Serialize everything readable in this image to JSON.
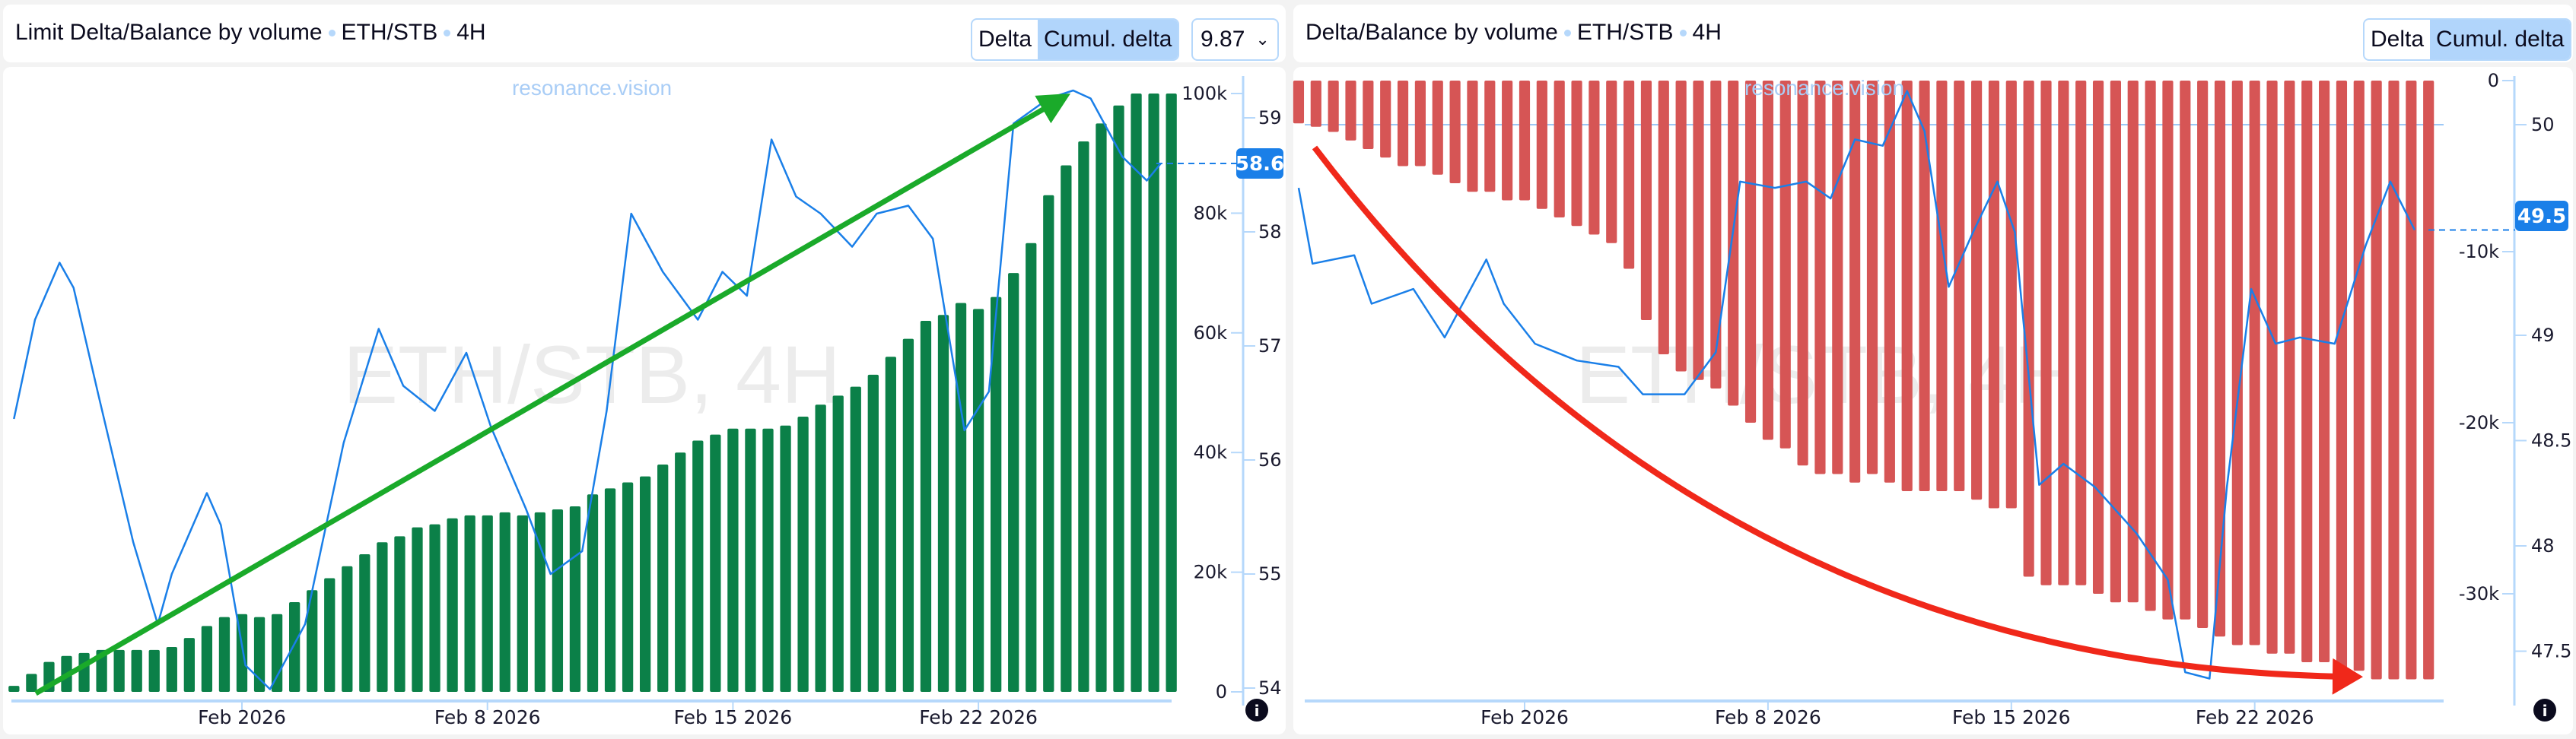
{
  "left": {
    "title": "Limit Delta/Balance by volume",
    "pair": "ETH/STB",
    "timeframe": "4H",
    "toggle": {
      "delta": "Delta",
      "cumul": "Cumul. delta",
      "active": "cumul"
    },
    "dropdown_value": "9.87",
    "watermark": "ETH/STB, 4H",
    "brand": "resonance.vision",
    "price_badge": "58.6",
    "info_icon": "i"
  },
  "right": {
    "title": "Delta/Balance by volume",
    "pair": "ETH/STB",
    "timeframe": "4H",
    "toggle": {
      "delta": "Delta",
      "cumul": "Cumul. delta",
      "active": "cumul"
    },
    "watermark": "ETH/STB, 4H",
    "brand": "resonance.vision",
    "price_badge": "49.5",
    "info_icon": "i"
  },
  "chart_data": [
    {
      "type": "bar+line",
      "title": "Limit Delta/Balance by volume • ETH/STB • 4H",
      "x_unit": "days relative to Feb 1 2026",
      "x_ticks": [
        {
          "day": 0,
          "label": "Feb 2026"
        },
        {
          "day": 7,
          "label": "Feb 8 2026"
        },
        {
          "day": 14,
          "label": "Feb 15 2026"
        },
        {
          "day": 21,
          "label": "Feb 22 2026"
        }
      ],
      "bars": {
        "name": "Cumulative limit delta",
        "color": "#0b8048",
        "start_day": -6.5,
        "step_days": 0.5,
        "values": [
          1000,
          3000,
          5000,
          6000,
          6500,
          7000,
          7000,
          7000,
          7000,
          7500,
          9000,
          11000,
          12500,
          13000,
          12500,
          13000,
          15000,
          17000,
          19000,
          21000,
          23000,
          25000,
          26000,
          27500,
          28000,
          29000,
          29500,
          29500,
          30000,
          29500,
          30000,
          30500,
          31000,
          33000,
          34000,
          35000,
          36000,
          38000,
          40000,
          42000,
          43000,
          44000,
          44000,
          44000,
          44500,
          46000,
          48000,
          49500,
          51000,
          53000,
          56000,
          59000,
          62000,
          63000,
          65000,
          64000,
          66000,
          70000,
          75000,
          83000,
          88000,
          92000,
          95000,
          98000,
          100000,
          100000,
          100000
        ]
      },
      "line": {
        "name": "Price",
        "color": "#1a7fe8",
        "points": [
          [
            -6.5,
            56.36
          ],
          [
            -5.9,
            57.23
          ],
          [
            -5.2,
            57.73
          ],
          [
            -4.8,
            57.51
          ],
          [
            -4.1,
            56.58
          ],
          [
            -3.1,
            55.28
          ],
          [
            -2.4,
            54.56
          ],
          [
            -2.0,
            55.0
          ],
          [
            -1.0,
            55.71
          ],
          [
            -0.6,
            55.43
          ],
          [
            0.1,
            54.2
          ],
          [
            0.8,
            53.99
          ],
          [
            1.8,
            54.56
          ],
          [
            2.9,
            56.15
          ],
          [
            3.9,
            57.15
          ],
          [
            4.6,
            56.65
          ],
          [
            5.5,
            56.43
          ],
          [
            6.4,
            56.94
          ],
          [
            7.1,
            56.29
          ],
          [
            8.1,
            55.57
          ],
          [
            8.8,
            55.0
          ],
          [
            9.7,
            55.2
          ],
          [
            10.4,
            56.43
          ],
          [
            11.1,
            58.16
          ],
          [
            12.0,
            57.65
          ],
          [
            13.0,
            57.23
          ],
          [
            13.7,
            57.65
          ],
          [
            14.4,
            57.44
          ],
          [
            15.1,
            58.81
          ],
          [
            15.8,
            58.31
          ],
          [
            16.5,
            58.16
          ],
          [
            17.4,
            57.87
          ],
          [
            18.1,
            58.16
          ],
          [
            19.0,
            58.23
          ],
          [
            19.7,
            57.94
          ],
          [
            20.6,
            56.26
          ],
          [
            21.3,
            56.6
          ],
          [
            22.0,
            58.95
          ],
          [
            23.0,
            59.17
          ],
          [
            23.7,
            59.24
          ],
          [
            24.2,
            59.17
          ],
          [
            25.1,
            58.66
          ],
          [
            25.8,
            58.45
          ],
          [
            26.2,
            58.6
          ]
        ]
      },
      "y_left": {
        "ticks": [
          0,
          20000,
          40000,
          60000,
          80000,
          100000
        ],
        "labels": [
          "0",
          "20k",
          "40k",
          "60k",
          "80k",
          "100k"
        ]
      },
      "y_right": {
        "ticks": [
          54,
          55,
          56,
          57,
          58,
          59
        ],
        "labels": [
          "54",
          "55",
          "56",
          "57",
          "58",
          "59"
        ]
      },
      "last_price": 58.6,
      "annotation": {
        "type": "arrow",
        "color": "#1aaa2a",
        "direction": "up-trend"
      }
    },
    {
      "type": "bar+line",
      "title": "Delta/Balance by volume • ETH/STB • 4H",
      "x_unit": "days relative to Feb 1 2026",
      "x_ticks": [
        {
          "day": 0,
          "label": "Feb 2026"
        },
        {
          "day": 7,
          "label": "Feb 8 2026"
        },
        {
          "day": 14,
          "label": "Feb 15 2026"
        },
        {
          "day": 21,
          "label": "Feb 22 2026"
        }
      ],
      "bars": {
        "name": "Cumulative delta",
        "color": "#d65555",
        "start_day": -6.5,
        "step_days": 0.5,
        "values": [
          -2500,
          -2700,
          -3000,
          -3500,
          -4000,
          -4500,
          -5000,
          -5000,
          -5500,
          -6000,
          -6500,
          -6500,
          -7000,
          -7000,
          -7500,
          -8000,
          -8500,
          -9000,
          -9500,
          -11000,
          -14000,
          -16000,
          -17000,
          -17500,
          -18000,
          -19000,
          -20000,
          -21000,
          -21500,
          -22500,
          -23000,
          -23000,
          -23500,
          -23000,
          -23500,
          -24000,
          -24000,
          -24000,
          -24000,
          -24500,
          -25000,
          -25000,
          -29000,
          -29500,
          -29500,
          -29500,
          -30000,
          -30500,
          -30500,
          -31000,
          -31500,
          -31500,
          -32000,
          -32500,
          -33000,
          -33000,
          -33500,
          -33500,
          -34000,
          -34000,
          -34500,
          -34500,
          -35000,
          -35000,
          -35000,
          -35000
        ]
      },
      "line": {
        "name": "Price",
        "color": "#1a7fe8",
        "points": [
          [
            -6.5,
            49.7
          ],
          [
            -6.1,
            49.34
          ],
          [
            -4.9,
            49.38
          ],
          [
            -4.4,
            49.15
          ],
          [
            -3.2,
            49.22
          ],
          [
            -2.3,
            48.99
          ],
          [
            -1.1,
            49.36
          ],
          [
            -0.6,
            49.15
          ],
          [
            0.3,
            48.96
          ],
          [
            1.5,
            48.88
          ],
          [
            2.7,
            48.85
          ],
          [
            3.4,
            48.72
          ],
          [
            4.6,
            48.72
          ],
          [
            5.5,
            48.92
          ],
          [
            6.2,
            49.73
          ],
          [
            7.2,
            49.7
          ],
          [
            8.1,
            49.73
          ],
          [
            8.8,
            49.65
          ],
          [
            9.5,
            49.93
          ],
          [
            10.3,
            49.9
          ],
          [
            11.0,
            50.16
          ],
          [
            11.5,
            49.97
          ],
          [
            12.2,
            49.23
          ],
          [
            12.9,
            49.49
          ],
          [
            13.6,
            49.73
          ],
          [
            14.1,
            49.49
          ],
          [
            14.8,
            48.29
          ],
          [
            15.5,
            48.39
          ],
          [
            16.4,
            48.28
          ],
          [
            17.6,
            48.06
          ],
          [
            18.5,
            47.84
          ],
          [
            19.0,
            47.4
          ],
          [
            19.7,
            47.37
          ],
          [
            20.2,
            48.28
          ],
          [
            20.9,
            49.22
          ],
          [
            21.6,
            48.96
          ],
          [
            22.3,
            48.99
          ],
          [
            23.3,
            48.96
          ],
          [
            24.2,
            49.43
          ],
          [
            24.9,
            49.73
          ],
          [
            25.6,
            49.5
          ]
        ]
      },
      "y_left": {
        "ticks": [
          0,
          -10000,
          -20000,
          -30000
        ],
        "labels": [
          "0",
          "-10k",
          "-20k",
          "-30k"
        ]
      },
      "y_right": {
        "ticks": [
          47.5,
          48,
          48.5,
          49,
          50
        ],
        "labels": [
          "47.5",
          "48",
          "48.5",
          "49",
          "50"
        ]
      },
      "last_price": 49.5,
      "annotation": {
        "type": "curved-arrow",
        "color": "#f0281a",
        "direction": "down-trend"
      }
    }
  ]
}
